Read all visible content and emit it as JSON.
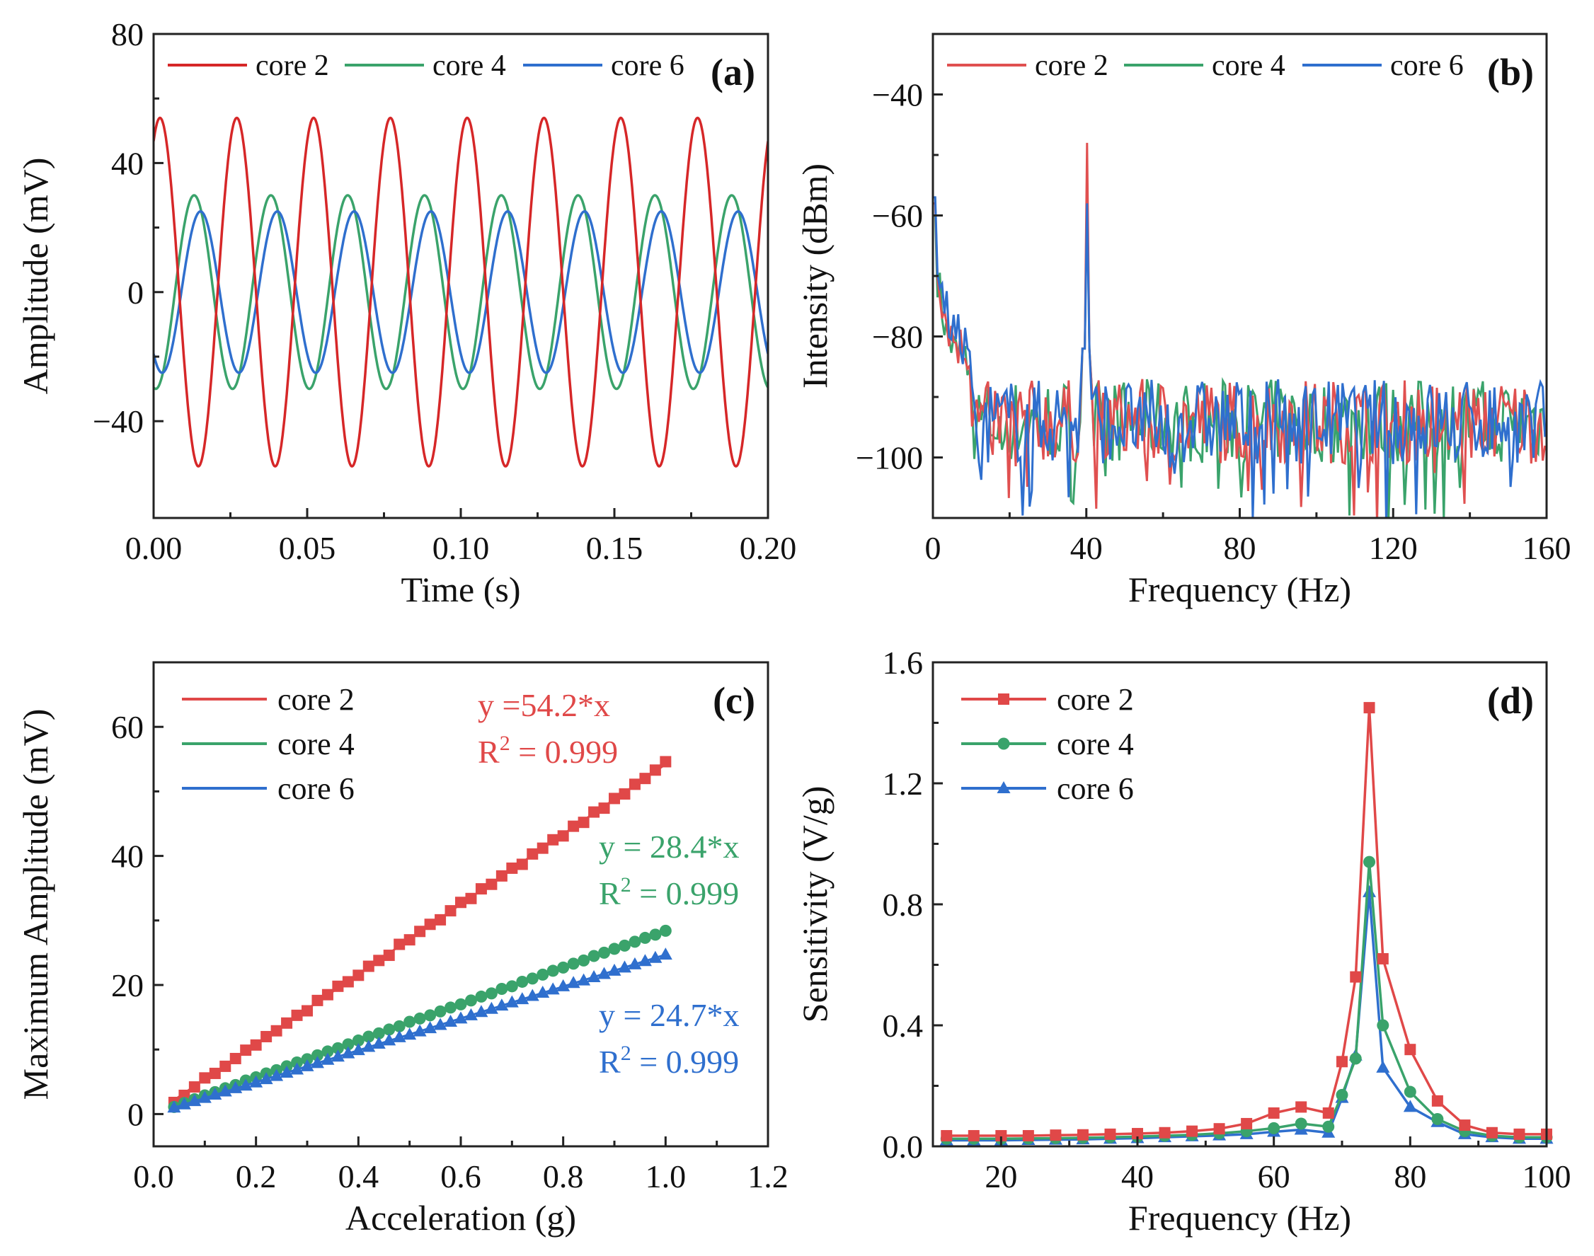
{
  "chart_data": [
    {
      "id": "a",
      "type": "line",
      "panel_label": "(a)",
      "xlabel": "Time (s)",
      "ylabel": "Amplitude (mV)",
      "xlim": [
        0,
        0.2
      ],
      "ylim": [
        -70,
        80
      ],
      "xticks": [
        0,
        0.05,
        0.1,
        0.15,
        0.2
      ],
      "xtick_labels": [
        "0.00",
        "0.05",
        "0.10",
        "0.15",
        "0.20"
      ],
      "yticks": [
        -40,
        0,
        40,
        80
      ],
      "ytick_labels": [
        "−40",
        "0",
        "40",
        "80"
      ],
      "legend_position": "top",
      "series": [
        {
          "name": "core 2",
          "color": "#d62728",
          "amplitude": 54,
          "frequency_hz": 40,
          "phase_deg": 60,
          "offset": 0
        },
        {
          "name": "core 4",
          "color": "#3aa36b",
          "amplitude": 30,
          "frequency_hz": 40,
          "phase_deg": -100,
          "offset": 0
        },
        {
          "name": "core 6",
          "color": "#2f6fce",
          "amplitude": 25,
          "frequency_hz": 40,
          "phase_deg": -130,
          "offset": 0
        }
      ]
    },
    {
      "id": "b",
      "type": "line",
      "panel_label": "(b)",
      "xlabel": "Frequency (Hz)",
      "ylabel": "Intensity (dBm)",
      "xlim": [
        0,
        160
      ],
      "ylim": [
        -110,
        -30
      ],
      "xticks": [
        0,
        40,
        80,
        120,
        160
      ],
      "xtick_labels": [
        "0",
        "40",
        "80",
        "120",
        "160"
      ],
      "yticks": [
        -100,
        -80,
        -60,
        -40
      ],
      "ytick_labels": [
        "−100",
        "−80",
        "−60",
        "−40"
      ],
      "legend_position": "top",
      "noise_floor_dbm": -94,
      "series": [
        {
          "name": "core 2",
          "color": "#e05050",
          "peak_hz": 40,
          "peak_dbm": -48,
          "dc_dbm": -58
        },
        {
          "name": "core 4",
          "color": "#3aa36b",
          "peak_hz": 40,
          "peak_dbm": -55,
          "dc_dbm": -60
        },
        {
          "name": "core 6",
          "color": "#2f6fce",
          "peak_hz": 40,
          "peak_dbm": -58,
          "dc_dbm": -57
        }
      ]
    },
    {
      "id": "c",
      "type": "scatter",
      "panel_label": "(c)",
      "xlabel": "Acceleration (g)",
      "ylabel": "Maximum Amplitude (mV)",
      "xlim": [
        0,
        1.2
      ],
      "ylim": [
        -5,
        70
      ],
      "xticks": [
        0,
        0.2,
        0.4,
        0.6,
        0.8,
        1.0,
        1.2
      ],
      "xtick_labels": [
        "0.0",
        "0.2",
        "0.4",
        "0.6",
        "0.8",
        "1.0",
        "1.2"
      ],
      "yticks": [
        0,
        20,
        40,
        60
      ],
      "ytick_labels": [
        "0",
        "20",
        "40",
        "60"
      ],
      "legend_position": "top-left",
      "x": [
        0.04,
        0.06,
        0.08,
        0.1,
        0.12,
        0.14,
        0.16,
        0.18,
        0.2,
        0.22,
        0.24,
        0.26,
        0.28,
        0.3,
        0.32,
        0.34,
        0.36,
        0.38,
        0.4,
        0.42,
        0.44,
        0.46,
        0.48,
        0.5,
        0.52,
        0.54,
        0.56,
        0.58,
        0.6,
        0.62,
        0.64,
        0.66,
        0.68,
        0.7,
        0.72,
        0.74,
        0.76,
        0.78,
        0.8,
        0.82,
        0.84,
        0.86,
        0.88,
        0.9,
        0.92,
        0.94,
        0.96,
        0.98,
        1.0
      ],
      "series": [
        {
          "name": "core 2",
          "color": "#e04848",
          "marker": "square",
          "slope": 54.2,
          "values": [
            1.8,
            2.9,
            4.2,
            5.6,
            6.3,
            7.4,
            8.6,
            9.9,
            10.7,
            12.0,
            12.9,
            14.1,
            15.3,
            16.0,
            17.6,
            18.5,
            19.8,
            20.5,
            21.5,
            22.9,
            23.8,
            24.6,
            26.3,
            27.0,
            28.3,
            29.4,
            30.1,
            31.5,
            32.8,
            33.4,
            34.9,
            35.6,
            36.9,
            38.1,
            38.7,
            40.3,
            41.2,
            42.5,
            43.1,
            44.6,
            45.2,
            46.8,
            47.4,
            48.9,
            49.6,
            51.1,
            52.0,
            53.3,
            54.6
          ],
          "fit_equation": "y =54.2*x",
          "fit_r2_value": " = 0.999"
        },
        {
          "name": "core 4",
          "color": "#3aa36b",
          "marker": "circle",
          "slope": 28.4,
          "values": [
            1.1,
            1.7,
            2.3,
            2.9,
            3.4,
            4.0,
            4.5,
            5.2,
            5.7,
            6.3,
            6.8,
            7.4,
            8.0,
            8.5,
            9.1,
            9.7,
            10.2,
            10.8,
            11.4,
            12.0,
            12.5,
            13.1,
            13.6,
            14.3,
            14.8,
            15.3,
            15.9,
            16.5,
            17.0,
            17.6,
            18.2,
            18.7,
            19.4,
            19.8,
            20.5,
            21.0,
            21.6,
            22.2,
            22.7,
            23.3,
            23.8,
            24.5,
            25.0,
            25.6,
            26.1,
            26.7,
            27.3,
            27.8,
            28.4
          ],
          "fit_equation": "y = 28.4*x",
          "fit_r2_value": " = 0.999"
        },
        {
          "name": "core 6",
          "color": "#2f6fce",
          "marker": "triangle",
          "slope": 24.7,
          "values": [
            1.0,
            1.5,
            2.0,
            2.5,
            3.0,
            3.5,
            4.0,
            4.4,
            4.9,
            5.4,
            5.9,
            6.4,
            6.9,
            7.4,
            7.9,
            8.4,
            8.9,
            9.4,
            9.9,
            10.4,
            10.9,
            11.4,
            11.9,
            12.3,
            12.8,
            13.3,
            13.8,
            14.3,
            14.8,
            15.3,
            15.8,
            16.3,
            16.8,
            17.3,
            17.8,
            18.3,
            18.8,
            19.3,
            19.8,
            20.3,
            20.7,
            21.2,
            21.7,
            22.2,
            22.7,
            23.2,
            23.7,
            24.2,
            24.7
          ],
          "fit_equation": "y = 24.7*x",
          "fit_r2_value": " = 0.999"
        }
      ]
    },
    {
      "id": "d",
      "type": "line",
      "panel_label": "(d)",
      "xlabel": "Frequency (Hz)",
      "ylabel": "Sensitivity (V/g)",
      "xlim": [
        10,
        100
      ],
      "ylim": [
        0,
        1.6
      ],
      "xticks": [
        20,
        40,
        60,
        80,
        100
      ],
      "xtick_labels": [
        "20",
        "40",
        "60",
        "80",
        "100"
      ],
      "yticks": [
        0,
        0.4,
        0.8,
        1.2,
        1.6
      ],
      "ytick_labels": [
        "0.0",
        "0.4",
        "0.8",
        "1.2",
        "1.6"
      ],
      "legend_position": "top-left",
      "x": [
        12,
        16,
        20,
        24,
        28,
        32,
        36,
        40,
        44,
        48,
        52,
        56,
        60,
        64,
        68,
        70,
        72,
        74,
        76,
        80,
        84,
        88,
        92,
        96,
        100
      ],
      "series": [
        {
          "name": "core 2",
          "color": "#e04848",
          "marker": "square",
          "values": [
            0.035,
            0.035,
            0.035,
            0.035,
            0.037,
            0.038,
            0.04,
            0.042,
            0.045,
            0.05,
            0.058,
            0.075,
            0.11,
            0.13,
            0.11,
            0.28,
            0.56,
            1.45,
            0.62,
            0.32,
            0.15,
            0.07,
            0.045,
            0.04,
            0.04
          ]
        },
        {
          "name": "core 4",
          "color": "#3aa36b",
          "marker": "circle",
          "values": [
            0.025,
            0.025,
            0.025,
            0.026,
            0.027,
            0.028,
            0.03,
            0.032,
            0.035,
            0.038,
            0.043,
            0.05,
            0.06,
            0.075,
            0.065,
            0.17,
            0.29,
            0.94,
            0.4,
            0.18,
            0.09,
            0.05,
            0.035,
            0.03,
            0.03
          ]
        },
        {
          "name": "core 6",
          "color": "#2f6fce",
          "marker": "triangle",
          "values": [
            0.02,
            0.02,
            0.02,
            0.021,
            0.022,
            0.023,
            0.025,
            0.027,
            0.03,
            0.033,
            0.036,
            0.04,
            0.048,
            0.055,
            0.045,
            0.16,
            0.3,
            0.84,
            0.26,
            0.13,
            0.08,
            0.04,
            0.03,
            0.025,
            0.025
          ]
        }
      ]
    }
  ]
}
